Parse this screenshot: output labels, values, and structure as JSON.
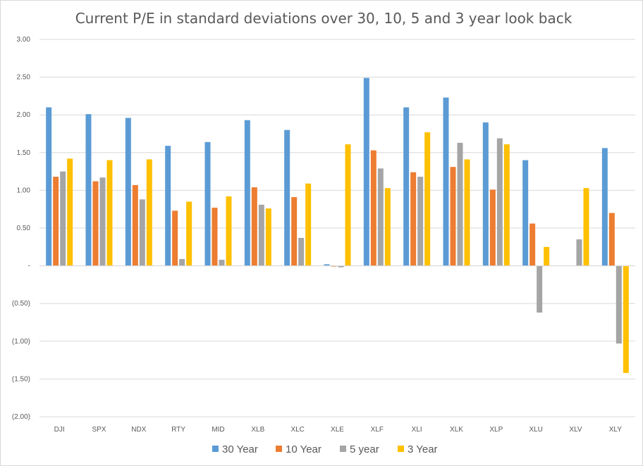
{
  "chart_data": {
    "type": "bar",
    "title": "Current P/E  in standard deviations over 30, 10, 5 and 3 year look back",
    "xlabel": "",
    "ylabel": "",
    "ylim": [
      -2.0,
      3.0
    ],
    "yticks": [
      3.0,
      2.5,
      2.0,
      1.5,
      1.0,
      0.5,
      0.0,
      -0.5,
      -1.0,
      -1.5,
      -2.0
    ],
    "ytick_labels": [
      "3.00",
      "2.50",
      "2.00",
      "1.50",
      "1.00",
      "0.50",
      "-",
      "(0.50)",
      "(1.00)",
      "(1.50)",
      "(2.00)"
    ],
    "grid": true,
    "legend_position": "bottom",
    "categories": [
      "DJI",
      "SPX",
      "NDX",
      "RTY",
      "MID",
      "XLB",
      "XLC",
      "XLE",
      "XLF",
      "XLI",
      "XLK",
      "XLP",
      "XLU",
      "XLV",
      "XLY"
    ],
    "series": [
      {
        "name": "30 Year",
        "color": "#5b9bd5",
        "values": [
          2.1,
          2.01,
          1.96,
          1.59,
          1.64,
          1.93,
          1.8,
          0.02,
          2.49,
          2.1,
          2.23,
          1.9,
          1.4,
          null,
          1.56
        ]
      },
      {
        "name": "10 Year",
        "color": "#ed7d31",
        "values": [
          1.18,
          1.12,
          1.07,
          0.73,
          0.77,
          1.04,
          0.91,
          -0.01,
          1.53,
          1.24,
          1.31,
          1.01,
          0.56,
          null,
          0.7
        ]
      },
      {
        "name": "5 year",
        "color": "#a5a5a5",
        "values": [
          1.25,
          1.17,
          0.88,
          0.09,
          0.08,
          0.81,
          0.37,
          -0.02,
          1.29,
          1.18,
          1.63,
          1.69,
          -0.62,
          0.35,
          -1.03
        ]
      },
      {
        "name": "3 Year",
        "color": "#ffc000",
        "values": [
          1.42,
          1.4,
          1.41,
          0.85,
          0.92,
          0.76,
          1.09,
          1.61,
          1.03,
          1.77,
          1.41,
          1.61,
          0.25,
          1.03,
          -1.42
        ]
      }
    ],
    "colors": {
      "gridline": "#d9d9d9",
      "text": "#595959",
      "background": "#ffffff"
    }
  }
}
